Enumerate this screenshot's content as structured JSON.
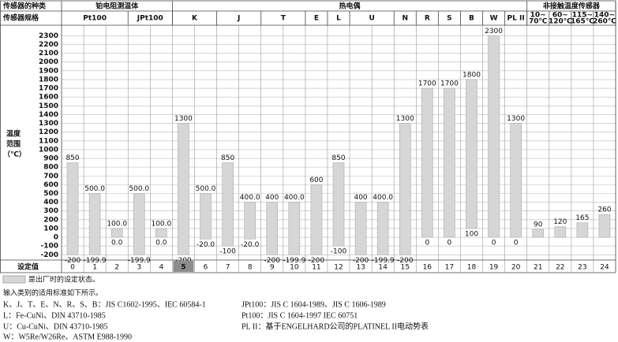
{
  "chart_data": {
    "type": "range-bar",
    "row_labels": {
      "type": "传感器的种类",
      "spec": "传感器规格",
      "setting": "设定值"
    },
    "y_label": [
      "温度",
      "范围",
      "（℃）"
    ],
    "groups": [
      {
        "name": "铂电阻测温体",
        "count": 5
      },
      {
        "name": "热电偶",
        "count": 16
      },
      {
        "name": "非接触温度传感器",
        "count": 4
      }
    ],
    "specs": [
      {
        "lines": [
          "Pt100"
        ],
        "count": 3
      },
      {
        "lines": [
          "JPt100"
        ],
        "count": 2
      },
      {
        "lines": [
          "K"
        ],
        "count": 2
      },
      {
        "lines": [
          "J"
        ],
        "count": 2
      },
      {
        "lines": [
          "T"
        ],
        "count": 2
      },
      {
        "lines": [
          "E"
        ],
        "count": 1
      },
      {
        "lines": [
          "L"
        ],
        "count": 1
      },
      {
        "lines": [
          "U"
        ],
        "count": 2
      },
      {
        "lines": [
          "N"
        ],
        "count": 1
      },
      {
        "lines": [
          "R"
        ],
        "count": 1
      },
      {
        "lines": [
          "S"
        ],
        "count": 1
      },
      {
        "lines": [
          "B"
        ],
        "count": 1
      },
      {
        "lines": [
          "W"
        ],
        "count": 1
      },
      {
        "lines": [
          "PL II"
        ],
        "count": 1
      },
      {
        "lines": [
          "10~",
          "70℃"
        ],
        "count": 1
      },
      {
        "lines": [
          "60~",
          "120℃"
        ],
        "count": 1
      },
      {
        "lines": [
          "115~",
          "165℃"
        ],
        "count": 1
      },
      {
        "lines": [
          "140~",
          "260℃"
        ],
        "count": 1
      }
    ],
    "categories": [
      "0",
      "1",
      "2",
      "3",
      "4",
      "5",
      "6",
      "7",
      "8",
      "9",
      "10",
      "11",
      "12",
      "13",
      "14",
      "15",
      "16",
      "17",
      "18",
      "19",
      "20",
      "21",
      "22",
      "23",
      "24"
    ],
    "highlighted_category": 5,
    "low": [
      -200,
      -199.9,
      0,
      -199.9,
      0,
      -200,
      -20,
      -100,
      -20,
      -200,
      -199.9,
      -200,
      -100,
      -200,
      -199.9,
      -200,
      0,
      0,
      100,
      0,
      0,
      0,
      0,
      0,
      0
    ],
    "low_labels": [
      "-200",
      "-199.9",
      "0.0",
      "-199.9",
      "0.0",
      "-200",
      "-20.0",
      "-100",
      "-20.0",
      "-200",
      "-199.9",
      "-200",
      "-100",
      "-200",
      "-199.9",
      "-200",
      "0",
      "0",
      "100",
      "0",
      "0",
      null,
      null,
      null,
      null
    ],
    "high": [
      850,
      500,
      100,
      500,
      100,
      1300,
      500,
      850,
      400,
      400,
      400,
      600,
      850,
      400,
      400,
      1300,
      1700,
      1700,
      1800,
      2300,
      1300,
      90,
      120,
      165,
      260
    ],
    "high_labels": [
      "850",
      "500.0",
      "100.0",
      "500.0",
      "100.0",
      "1300",
      "500.0",
      "850",
      "400.0",
      "400",
      "400.0",
      "600",
      "850",
      "400",
      "400.0",
      "1300",
      "1700",
      "1700",
      "1800",
      "2300",
      "1300",
      "90",
      "120",
      "165",
      "260"
    ],
    "color": "#d6d6d6",
    "ylim": [
      -260,
      2420
    ],
    "yticks": [
      2300,
      2200,
      2100,
      2000,
      1900,
      1800,
      1700,
      1600,
      1500,
      1400,
      1300,
      1200,
      1100,
      1000,
      900,
      800,
      700,
      600,
      500,
      400,
      300,
      200,
      100,
      0,
      -100,
      -200
    ],
    "grid": true
  },
  "notes": {
    "legend": "是出厂时的设定状态。",
    "intro": "输入类别的适用标准如下所示。",
    "standards_left": [
      "K、J、T、E、N、R、S、B：JIS C1602-1995、IEC 60584-1",
      "L：Fe-CuNi、DIN 43710-1985",
      "U：Cu-CuNi、DIN 43710-1985",
      "W：W5Re/W26Re、ASTM E988-1990"
    ],
    "standards_right": [
      "JPt100：JIS C 1604-1989、JIS C 1606-1989",
      "Pt100：JIS C 1604-1997 IEC 60751",
      "PL II：基于ENGELHARD公司的PLATINEL II电动势表"
    ]
  }
}
